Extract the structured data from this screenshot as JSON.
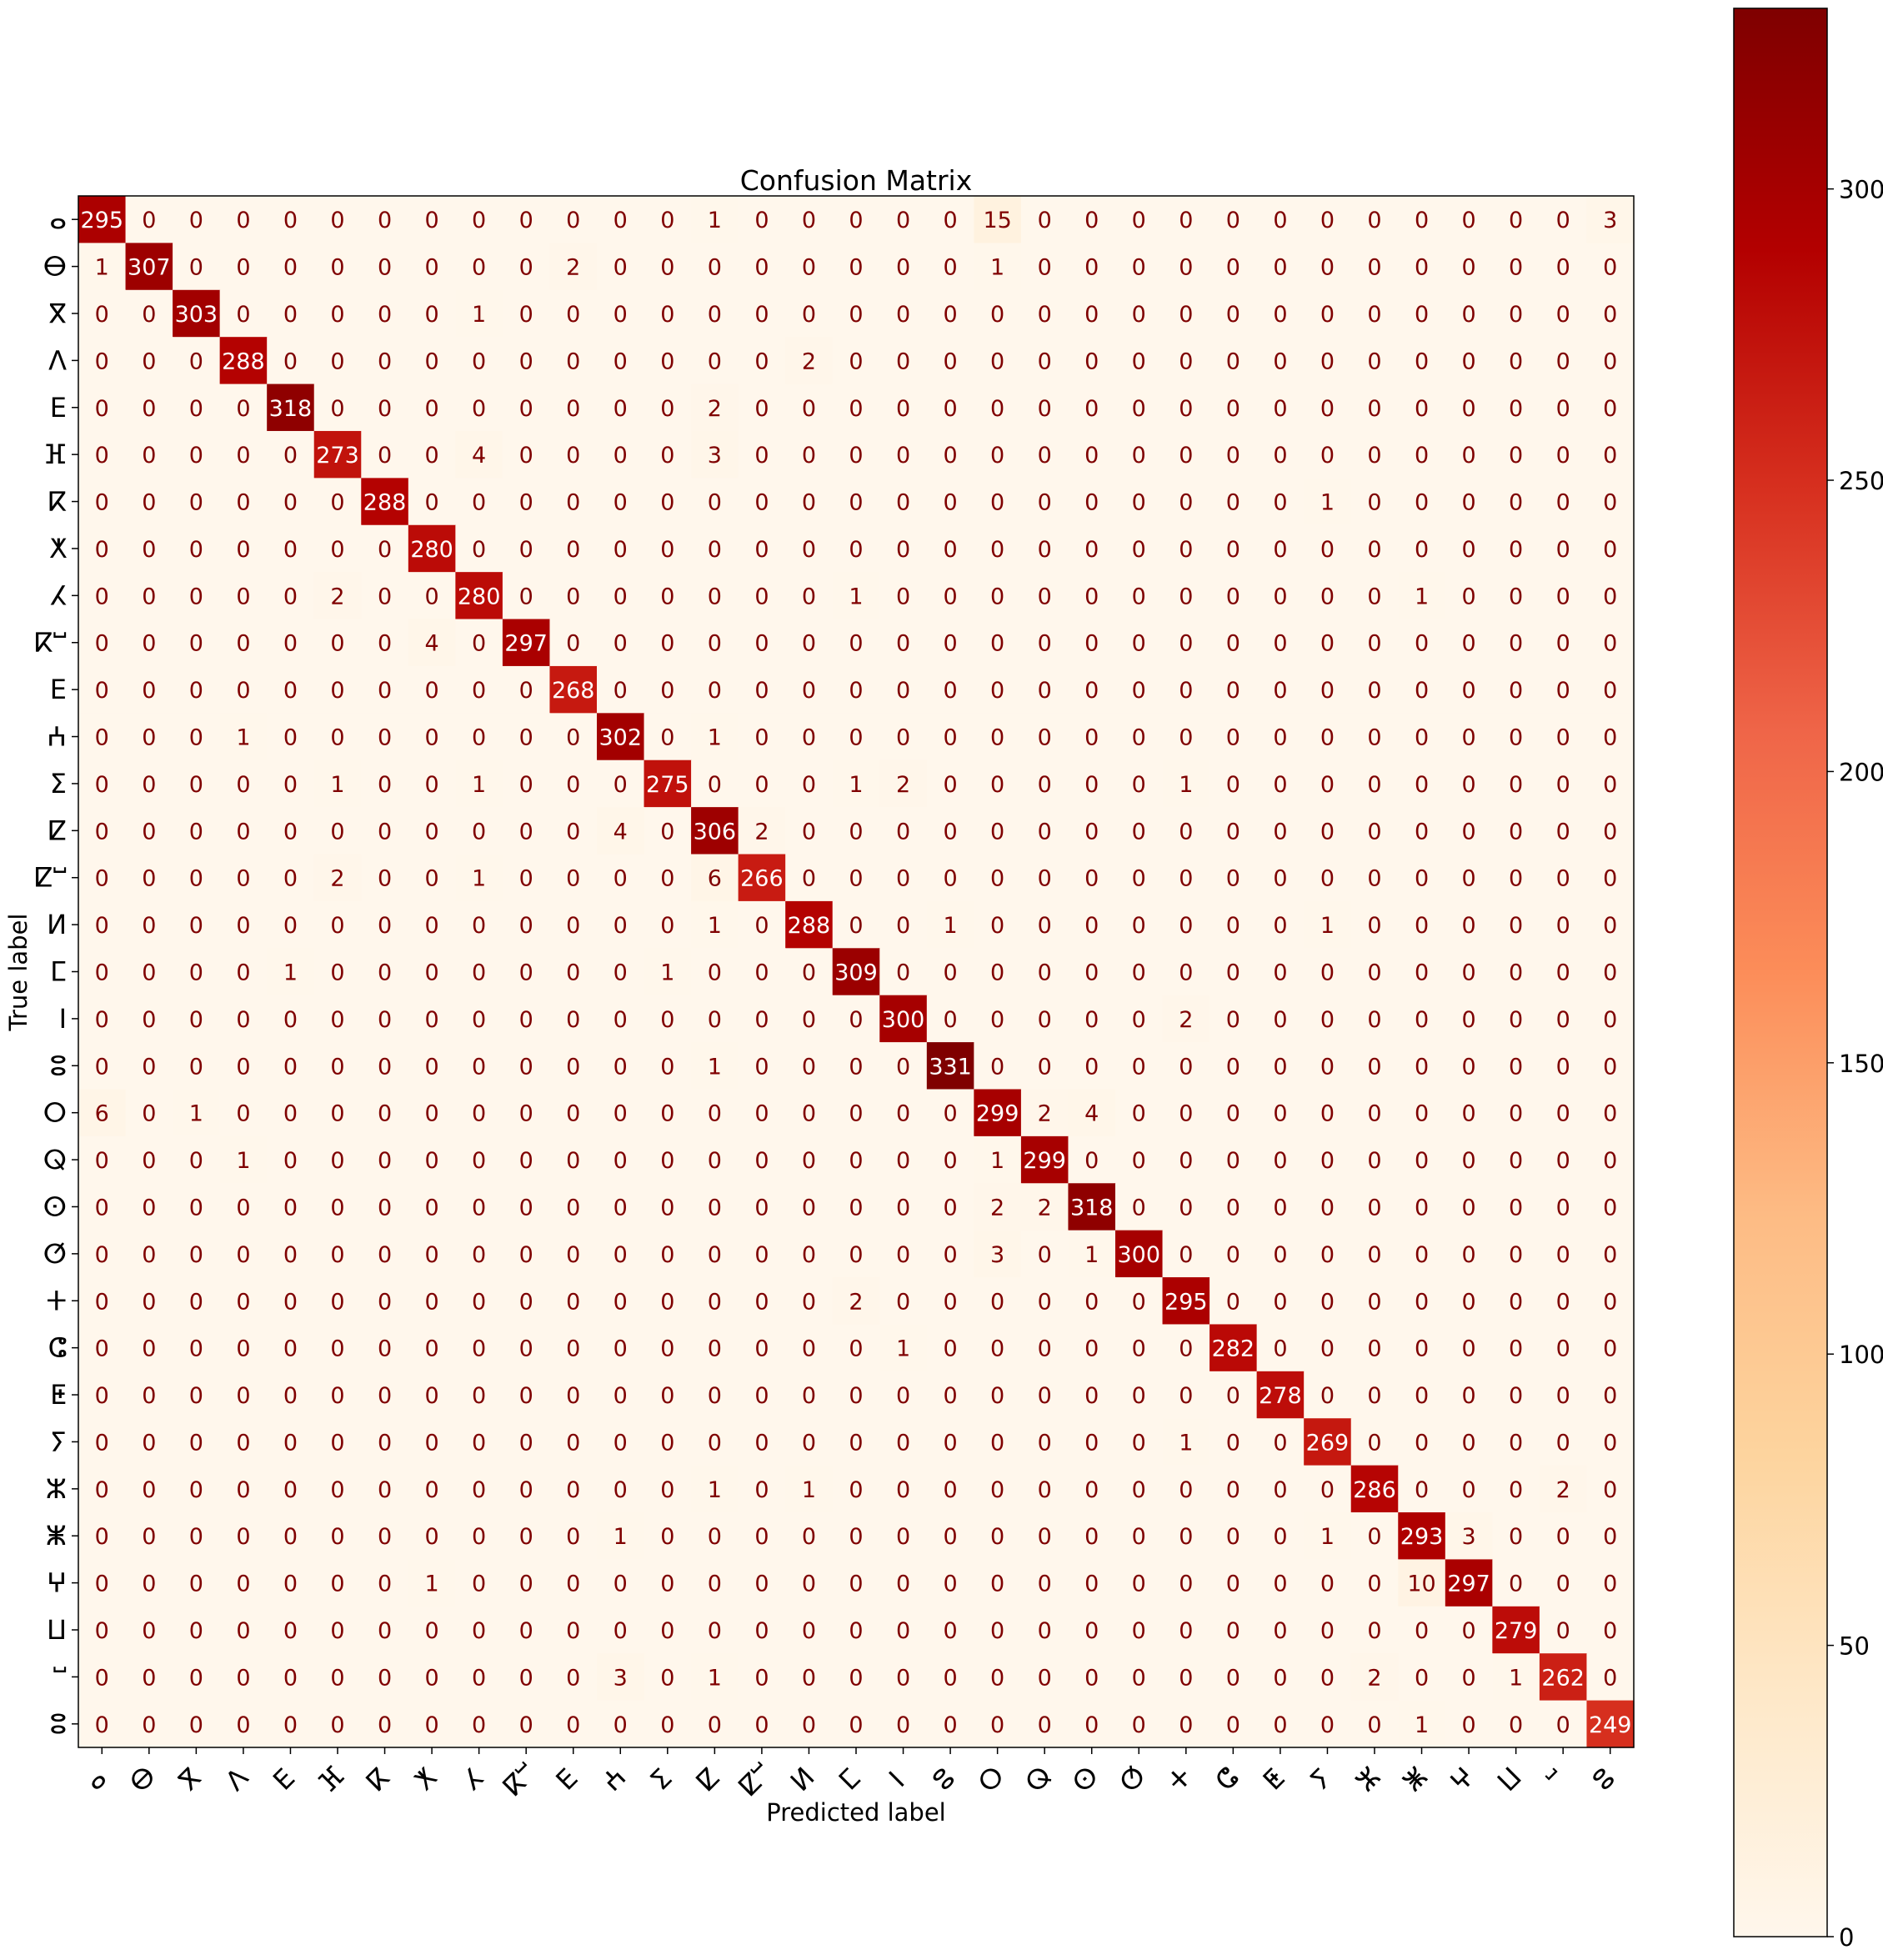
{
  "chart_data": {
    "type": "heatmap",
    "title": "Confusion Matrix",
    "xlabel": "Predicted label",
    "ylabel": "True label",
    "labels": [
      "ⴰ",
      "ⴱ",
      "ⴳ",
      "ⴷ",
      "ⴹ",
      "ⴼ",
      "ⴽ",
      "ⵅ",
      "ⵃ",
      "ⴽⵯ",
      "ⴹ",
      "ⵄ",
      "ⵉ",
      "ⵇ",
      "ⵇⵯ",
      "ⵍ",
      "ⵎ",
      "ⵏ",
      "ⵓ",
      "ⵔ",
      "ⵕ",
      "ⵙ",
      "ⵚ",
      "ⵜ",
      "ⵛ",
      "ⵟ",
      "ⵢ",
      "ⵣ",
      "ⵥ",
      "ⵖ",
      "ⵡ",
      "ⵯ",
      "ⵓ"
    ],
    "matrix": [
      [
        295,
        0,
        0,
        0,
        0,
        0,
        0,
        0,
        0,
        0,
        0,
        0,
        0,
        1,
        0,
        0,
        0,
        0,
        0,
        15,
        0,
        0,
        0,
        0,
        0,
        0,
        0,
        0,
        0,
        0,
        0,
        0,
        3
      ],
      [
        1,
        307,
        0,
        0,
        0,
        0,
        0,
        0,
        0,
        0,
        2,
        0,
        0,
        0,
        0,
        0,
        0,
        0,
        0,
        1,
        0,
        0,
        0,
        0,
        0,
        0,
        0,
        0,
        0,
        0,
        0,
        0,
        0
      ],
      [
        0,
        0,
        303,
        0,
        0,
        0,
        0,
        0,
        1,
        0,
        0,
        0,
        0,
        0,
        0,
        0,
        0,
        0,
        0,
        0,
        0,
        0,
        0,
        0,
        0,
        0,
        0,
        0,
        0,
        0,
        0,
        0,
        0
      ],
      [
        0,
        0,
        0,
        288,
        0,
        0,
        0,
        0,
        0,
        0,
        0,
        0,
        0,
        0,
        0,
        2,
        0,
        0,
        0,
        0,
        0,
        0,
        0,
        0,
        0,
        0,
        0,
        0,
        0,
        0,
        0,
        0,
        0
      ],
      [
        0,
        0,
        0,
        0,
        318,
        0,
        0,
        0,
        0,
        0,
        0,
        0,
        0,
        2,
        0,
        0,
        0,
        0,
        0,
        0,
        0,
        0,
        0,
        0,
        0,
        0,
        0,
        0,
        0,
        0,
        0,
        0,
        0
      ],
      [
        0,
        0,
        0,
        0,
        0,
        273,
        0,
        0,
        4,
        0,
        0,
        0,
        0,
        3,
        0,
        0,
        0,
        0,
        0,
        0,
        0,
        0,
        0,
        0,
        0,
        0,
        0,
        0,
        0,
        0,
        0,
        0,
        0
      ],
      [
        0,
        0,
        0,
        0,
        0,
        0,
        288,
        0,
        0,
        0,
        0,
        0,
        0,
        0,
        0,
        0,
        0,
        0,
        0,
        0,
        0,
        0,
        0,
        0,
        0,
        0,
        1,
        0,
        0,
        0,
        0,
        0,
        0
      ],
      [
        0,
        0,
        0,
        0,
        0,
        0,
        0,
        280,
        0,
        0,
        0,
        0,
        0,
        0,
        0,
        0,
        0,
        0,
        0,
        0,
        0,
        0,
        0,
        0,
        0,
        0,
        0,
        0,
        0,
        0,
        0,
        0,
        0
      ],
      [
        0,
        0,
        0,
        0,
        0,
        2,
        0,
        0,
        280,
        0,
        0,
        0,
        0,
        0,
        0,
        0,
        1,
        0,
        0,
        0,
        0,
        0,
        0,
        0,
        0,
        0,
        0,
        0,
        1,
        0,
        0,
        0,
        0
      ],
      [
        0,
        0,
        0,
        0,
        0,
        0,
        0,
        4,
        0,
        297,
        0,
        0,
        0,
        0,
        0,
        0,
        0,
        0,
        0,
        0,
        0,
        0,
        0,
        0,
        0,
        0,
        0,
        0,
        0,
        0,
        0,
        0,
        0
      ],
      [
        0,
        0,
        0,
        0,
        0,
        0,
        0,
        0,
        0,
        0,
        268,
        0,
        0,
        0,
        0,
        0,
        0,
        0,
        0,
        0,
        0,
        0,
        0,
        0,
        0,
        0,
        0,
        0,
        0,
        0,
        0,
        0,
        0
      ],
      [
        0,
        0,
        0,
        1,
        0,
        0,
        0,
        0,
        0,
        0,
        0,
        302,
        0,
        1,
        0,
        0,
        0,
        0,
        0,
        0,
        0,
        0,
        0,
        0,
        0,
        0,
        0,
        0,
        0,
        0,
        0,
        0,
        0
      ],
      [
        0,
        0,
        0,
        0,
        0,
        1,
        0,
        0,
        1,
        0,
        0,
        0,
        275,
        0,
        0,
        0,
        1,
        2,
        0,
        0,
        0,
        0,
        0,
        1,
        0,
        0,
        0,
        0,
        0,
        0,
        0,
        0,
        0
      ],
      [
        0,
        0,
        0,
        0,
        0,
        0,
        0,
        0,
        0,
        0,
        0,
        4,
        0,
        306,
        2,
        0,
        0,
        0,
        0,
        0,
        0,
        0,
        0,
        0,
        0,
        0,
        0,
        0,
        0,
        0,
        0,
        0,
        0
      ],
      [
        0,
        0,
        0,
        0,
        0,
        2,
        0,
        0,
        1,
        0,
        0,
        0,
        0,
        6,
        266,
        0,
        0,
        0,
        0,
        0,
        0,
        0,
        0,
        0,
        0,
        0,
        0,
        0,
        0,
        0,
        0,
        0,
        0
      ],
      [
        0,
        0,
        0,
        0,
        0,
        0,
        0,
        0,
        0,
        0,
        0,
        0,
        0,
        1,
        0,
        288,
        0,
        0,
        1,
        0,
        0,
        0,
        0,
        0,
        0,
        0,
        1,
        0,
        0,
        0,
        0,
        0,
        0
      ],
      [
        0,
        0,
        0,
        0,
        1,
        0,
        0,
        0,
        0,
        0,
        0,
        0,
        1,
        0,
        0,
        0,
        309,
        0,
        0,
        0,
        0,
        0,
        0,
        0,
        0,
        0,
        0,
        0,
        0,
        0,
        0,
        0,
        0
      ],
      [
        0,
        0,
        0,
        0,
        0,
        0,
        0,
        0,
        0,
        0,
        0,
        0,
        0,
        0,
        0,
        0,
        0,
        300,
        0,
        0,
        0,
        0,
        0,
        2,
        0,
        0,
        0,
        0,
        0,
        0,
        0,
        0,
        0
      ],
      [
        0,
        0,
        0,
        0,
        0,
        0,
        0,
        0,
        0,
        0,
        0,
        0,
        0,
        1,
        0,
        0,
        0,
        0,
        331,
        0,
        0,
        0,
        0,
        0,
        0,
        0,
        0,
        0,
        0,
        0,
        0,
        0,
        0
      ],
      [
        6,
        0,
        1,
        0,
        0,
        0,
        0,
        0,
        0,
        0,
        0,
        0,
        0,
        0,
        0,
        0,
        0,
        0,
        0,
        299,
        2,
        4,
        0,
        0,
        0,
        0,
        0,
        0,
        0,
        0,
        0,
        0,
        0
      ],
      [
        0,
        0,
        0,
        1,
        0,
        0,
        0,
        0,
        0,
        0,
        0,
        0,
        0,
        0,
        0,
        0,
        0,
        0,
        0,
        1,
        299,
        0,
        0,
        0,
        0,
        0,
        0,
        0,
        0,
        0,
        0,
        0,
        0
      ],
      [
        0,
        0,
        0,
        0,
        0,
        0,
        0,
        0,
        0,
        0,
        0,
        0,
        0,
        0,
        0,
        0,
        0,
        0,
        0,
        2,
        2,
        318,
        0,
        0,
        0,
        0,
        0,
        0,
        0,
        0,
        0,
        0,
        0
      ],
      [
        0,
        0,
        0,
        0,
        0,
        0,
        0,
        0,
        0,
        0,
        0,
        0,
        0,
        0,
        0,
        0,
        0,
        0,
        0,
        3,
        0,
        1,
        300,
        0,
        0,
        0,
        0,
        0,
        0,
        0,
        0,
        0,
        0
      ],
      [
        0,
        0,
        0,
        0,
        0,
        0,
        0,
        0,
        0,
        0,
        0,
        0,
        0,
        0,
        0,
        0,
        2,
        0,
        0,
        0,
        0,
        0,
        0,
        295,
        0,
        0,
        0,
        0,
        0,
        0,
        0,
        0,
        0
      ],
      [
        0,
        0,
        0,
        0,
        0,
        0,
        0,
        0,
        0,
        0,
        0,
        0,
        0,
        0,
        0,
        0,
        0,
        1,
        0,
        0,
        0,
        0,
        0,
        0,
        282,
        0,
        0,
        0,
        0,
        0,
        0,
        0,
        0
      ],
      [
        0,
        0,
        0,
        0,
        0,
        0,
        0,
        0,
        0,
        0,
        0,
        0,
        0,
        0,
        0,
        0,
        0,
        0,
        0,
        0,
        0,
        0,
        0,
        0,
        0,
        278,
        0,
        0,
        0,
        0,
        0,
        0,
        0
      ],
      [
        0,
        0,
        0,
        0,
        0,
        0,
        0,
        0,
        0,
        0,
        0,
        0,
        0,
        0,
        0,
        0,
        0,
        0,
        0,
        0,
        0,
        0,
        0,
        1,
        0,
        0,
        269,
        0,
        0,
        0,
        0,
        0,
        0
      ],
      [
        0,
        0,
        0,
        0,
        0,
        0,
        0,
        0,
        0,
        0,
        0,
        0,
        0,
        1,
        0,
        1,
        0,
        0,
        0,
        0,
        0,
        0,
        0,
        0,
        0,
        0,
        0,
        286,
        0,
        0,
        0,
        2,
        0
      ],
      [
        0,
        0,
        0,
        0,
        0,
        0,
        0,
        0,
        0,
        0,
        0,
        1,
        0,
        0,
        0,
        0,
        0,
        0,
        0,
        0,
        0,
        0,
        0,
        0,
        0,
        0,
        1,
        0,
        293,
        3,
        0,
        0,
        0
      ],
      [
        0,
        0,
        0,
        0,
        0,
        0,
        0,
        1,
        0,
        0,
        0,
        0,
        0,
        0,
        0,
        0,
        0,
        0,
        0,
        0,
        0,
        0,
        0,
        0,
        0,
        0,
        0,
        0,
        10,
        297,
        0,
        0,
        0
      ],
      [
        0,
        0,
        0,
        0,
        0,
        0,
        0,
        0,
        0,
        0,
        0,
        0,
        0,
        0,
        0,
        0,
        0,
        0,
        0,
        0,
        0,
        0,
        0,
        0,
        0,
        0,
        0,
        0,
        0,
        0,
        279,
        0,
        0
      ],
      [
        0,
        0,
        0,
        0,
        0,
        0,
        0,
        0,
        0,
        0,
        0,
        3,
        0,
        1,
        0,
        0,
        0,
        0,
        0,
        0,
        0,
        0,
        0,
        0,
        0,
        0,
        0,
        2,
        0,
        0,
        1,
        262,
        0
      ],
      [
        0,
        0,
        0,
        0,
        0,
        0,
        0,
        0,
        0,
        0,
        0,
        0,
        0,
        0,
        0,
        0,
        0,
        0,
        0,
        0,
        0,
        0,
        0,
        0,
        0,
        0,
        0,
        0,
        1,
        0,
        0,
        0,
        249
      ]
    ],
    "colorbar": {
      "colormap": "OrRd",
      "vmin": 0,
      "vmax": 331,
      "ticks": [
        0,
        50,
        100,
        150,
        200,
        250,
        300
      ]
    },
    "colors": {
      "text_light": "#ffffff",
      "text_dark": "#7f0000",
      "axis": "#000000"
    }
  }
}
